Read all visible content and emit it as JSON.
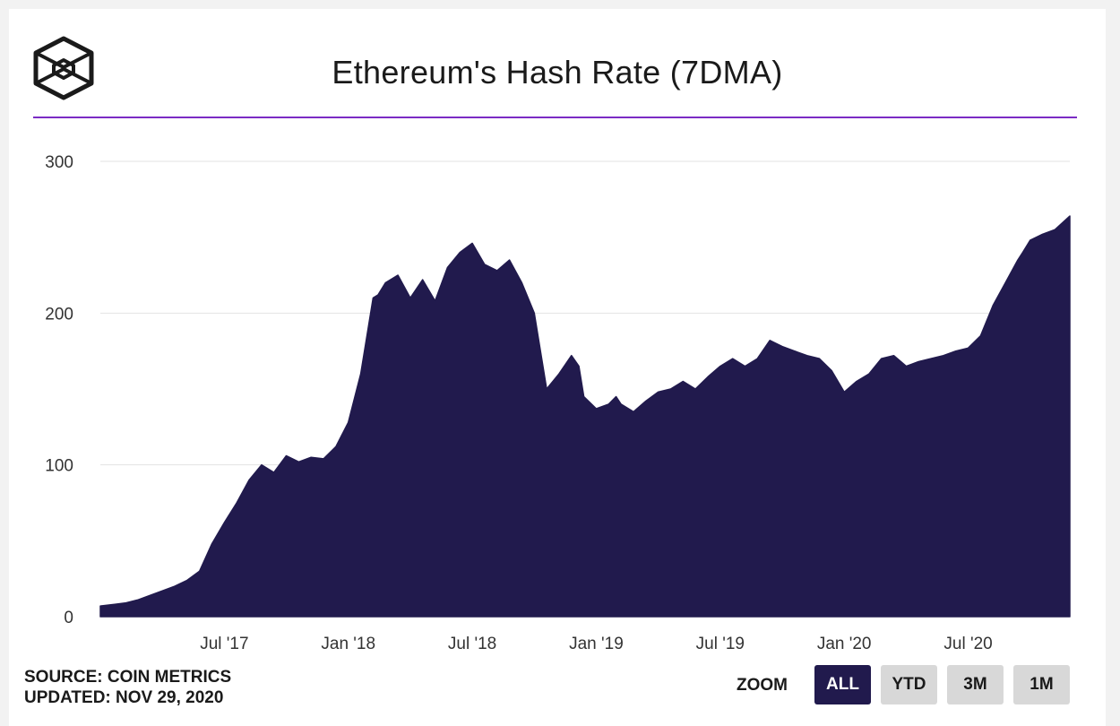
{
  "title": "Ethereum's Hash Rate (7DMA)",
  "footer": {
    "source": "SOURCE: COIN METRICS",
    "updated": "UPDATED: NOV 29, 2020"
  },
  "zoom": {
    "label": "ZOOM",
    "buttons": [
      "ALL",
      "YTD",
      "3M",
      "1M"
    ],
    "active": "ALL"
  },
  "colors": {
    "area": "#211a4d",
    "accent_rule": "#7b2cc4",
    "grid": "#e3e3e3",
    "button_active": "#211a4d",
    "button_inactive": "#d8d8d8"
  },
  "chart_data": {
    "type": "area",
    "title": "Ethereum's Hash Rate (7DMA)",
    "xlabel": "",
    "ylabel": "",
    "ylim": [
      0,
      300
    ],
    "yticks": [
      0,
      100,
      200,
      300
    ],
    "xlim": [
      2017.0,
      2020.91
    ],
    "xticks": [
      {
        "label": "Jul '17",
        "value": 2017.5
      },
      {
        "label": "Jan '18",
        "value": 2018.0
      },
      {
        "label": "Jul '18",
        "value": 2018.5
      },
      {
        "label": "Jan '19",
        "value": 2019.0
      },
      {
        "label": "Jul '19",
        "value": 2019.5
      },
      {
        "label": "Jan '20",
        "value": 2020.0
      },
      {
        "label": "Jul '20",
        "value": 2020.5
      }
    ],
    "grid": true,
    "series": [
      {
        "name": "Hash Rate (7DMA)",
        "x": [
          2017.0,
          2017.05,
          2017.1,
          2017.15,
          2017.2,
          2017.25,
          2017.3,
          2017.35,
          2017.4,
          2017.45,
          2017.5,
          2017.55,
          2017.6,
          2017.65,
          2017.7,
          2017.75,
          2017.8,
          2017.85,
          2017.9,
          2017.95,
          2018.0,
          2018.05,
          2018.08,
          2018.1,
          2018.12,
          2018.15,
          2018.2,
          2018.25,
          2018.3,
          2018.35,
          2018.4,
          2018.45,
          2018.5,
          2018.55,
          2018.6,
          2018.65,
          2018.7,
          2018.75,
          2018.8,
          2018.85,
          2018.9,
          2018.93,
          2018.95,
          2019.0,
          2019.05,
          2019.08,
          2019.1,
          2019.15,
          2019.2,
          2019.25,
          2019.3,
          2019.35,
          2019.4,
          2019.45,
          2019.5,
          2019.55,
          2019.6,
          2019.65,
          2019.7,
          2019.75,
          2019.8,
          2019.85,
          2019.9,
          2019.95,
          2020.0,
          2020.05,
          2020.1,
          2020.15,
          2020.2,
          2020.25,
          2020.3,
          2020.35,
          2020.4,
          2020.45,
          2020.5,
          2020.55,
          2020.6,
          2020.65,
          2020.7,
          2020.72,
          2020.75,
          2020.8,
          2020.85,
          2020.91
        ],
        "values": [
          7,
          8,
          9,
          11,
          14,
          17,
          20,
          24,
          30,
          48,
          62,
          75,
          90,
          100,
          95,
          106,
          102,
          105,
          104,
          112,
          128,
          160,
          190,
          210,
          212,
          220,
          225,
          210,
          222,
          208,
          230,
          240,
          246,
          232,
          228,
          235,
          220,
          200,
          150,
          160,
          172,
          165,
          145,
          137,
          140,
          145,
          140,
          135,
          142,
          148,
          150,
          155,
          150,
          158,
          165,
          170,
          165,
          170,
          182,
          178,
          175,
          172,
          170,
          162,
          148,
          155,
          160,
          170,
          172,
          165,
          168,
          170,
          172,
          175,
          177,
          185,
          205,
          220,
          235,
          240,
          248,
          252,
          255,
          264
        ]
      }
    ]
  }
}
